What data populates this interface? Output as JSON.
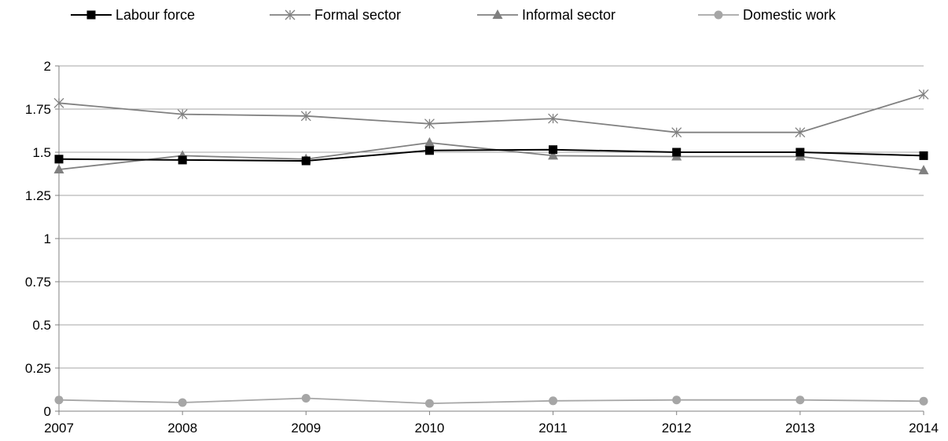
{
  "chart_data": {
    "type": "line",
    "title": "",
    "xlabel": "",
    "ylabel": "",
    "x": [
      "2007",
      "2008",
      "2009",
      "2010",
      "2011",
      "2012",
      "2013",
      "2014"
    ],
    "ylim": [
      0,
      2
    ],
    "yticks": [
      "0",
      "0.25",
      "0.5",
      "0.75",
      "1",
      "1.25",
      "1.5",
      "1.75",
      "2"
    ],
    "grid": true,
    "legend_position": "top",
    "series": [
      {
        "name": "Labour force",
        "marker": "square",
        "color": "#000000",
        "values": [
          1.46,
          1.455,
          1.45,
          1.51,
          1.515,
          1.5,
          1.5,
          1.48
        ]
      },
      {
        "name": "Formal sector",
        "marker": "asterisk",
        "color": "#808080",
        "values": [
          1.785,
          1.72,
          1.71,
          1.665,
          1.695,
          1.615,
          1.615,
          1.835
        ]
      },
      {
        "name": "Informal sector",
        "marker": "triangle",
        "color": "#808080",
        "values": [
          1.4,
          1.48,
          1.46,
          1.555,
          1.48,
          1.475,
          1.475,
          1.395
        ]
      },
      {
        "name": "Domestic work",
        "marker": "circle",
        "color": "#a6a6a6",
        "values": [
          0.065,
          0.05,
          0.075,
          0.045,
          0.06,
          0.065,
          0.065,
          0.058
        ]
      }
    ]
  }
}
